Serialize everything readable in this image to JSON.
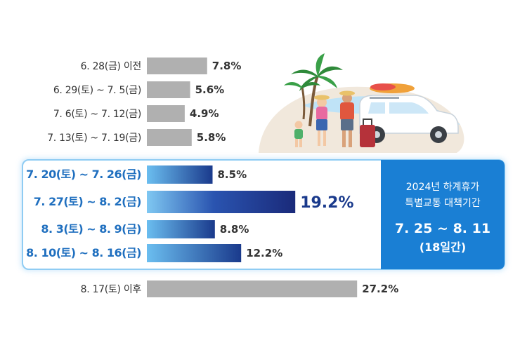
{
  "chart_data": {
    "type": "bar",
    "orientation": "horizontal",
    "unit": "%",
    "categories": [
      "6. 28(금) 이전",
      "6. 29(토) ~ 7. 5(금)",
      "7. 6(토) ~ 7. 12(금)",
      "7. 13(토) ~ 7. 19(금)",
      "7. 20(토) ~ 7. 26(금)",
      "7. 27(토) ~ 8. 2(금)",
      "8. 3(토) ~ 8. 9(금)",
      "8. 10(토) ~ 8. 16(금)",
      "8. 17(토) 이후"
    ],
    "values": [
      7.8,
      5.6,
      4.9,
      5.8,
      8.5,
      19.2,
      8.8,
      12.2,
      27.2
    ],
    "value_labels": [
      "7.8%",
      "5.6%",
      "4.9%",
      "5.8%",
      "8.5%",
      "19.2%",
      "8.8%",
      "12.2%",
      "27.2%"
    ],
    "highlighted": [
      false,
      false,
      false,
      false,
      true,
      true,
      true,
      true,
      false
    ],
    "peak_index": 5,
    "colors": {
      "normal_bar": "#b0b0b0",
      "highlight_light": "#6bbef0",
      "highlight_dark": "#1a3a8c",
      "peak_dark": "#1a2a7a",
      "panel_bg": "#1a7fd4",
      "highlight_text": "#1f6fbf"
    }
  },
  "special_period": {
    "title_line1": "2024년 하계휴가",
    "title_line2": "특별교통 대책기간",
    "dates": "7. 25 ~ 8. 11",
    "duration": "(18일간)"
  },
  "illustration": {
    "icons": [
      "palm-tree-icon",
      "beach-icon",
      "family-icon",
      "suitcase-icon",
      "car-icon",
      "surfboard-icon"
    ]
  }
}
